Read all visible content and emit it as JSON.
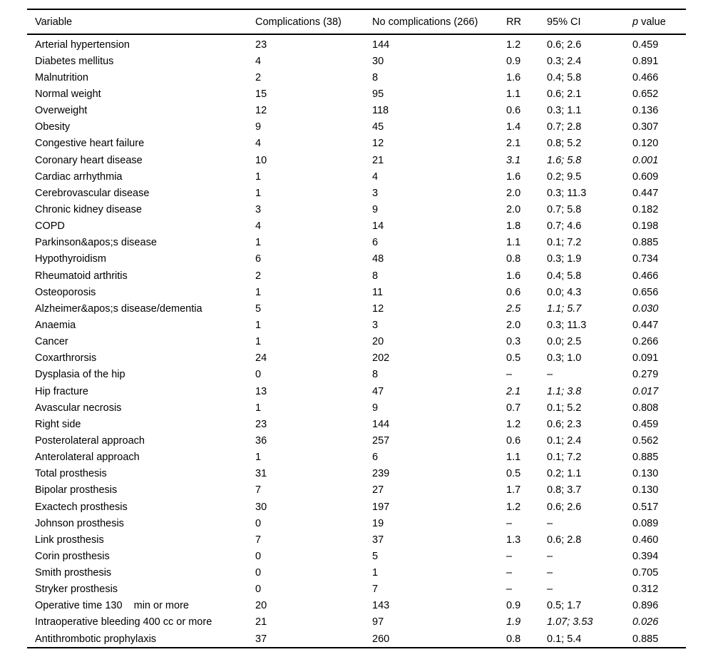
{
  "page": {
    "background_color": "#ffffff",
    "text_color": "#000000"
  },
  "table": {
    "columns": [
      {
        "key": "variable",
        "label_parts": [
          {
            "text": "Variable",
            "italic": false
          }
        ]
      },
      {
        "key": "complications",
        "label_parts": [
          {
            "text": "Complications (38)",
            "italic": false
          }
        ]
      },
      {
        "key": "no_complications",
        "label_parts": [
          {
            "text": "No complications (266)",
            "italic": false
          }
        ]
      },
      {
        "key": "rr",
        "label_parts": [
          {
            "text": "RR",
            "italic": false
          }
        ]
      },
      {
        "key": "ci",
        "label_parts": [
          {
            "text": "95% CI",
            "italic": false
          }
        ]
      },
      {
        "key": "p",
        "label_parts": [
          {
            "text": "p",
            "italic": true
          },
          {
            "text": " value",
            "italic": false
          }
        ]
      }
    ],
    "rows": [
      {
        "variable": "Arterial hypertension",
        "complications": "23",
        "no_complications": "144",
        "rr": "1.2",
        "ci": "0.6; 2.6",
        "p": "0.459",
        "significant": false
      },
      {
        "variable": "Diabetes mellitus",
        "complications": "4",
        "no_complications": "30",
        "rr": "0.9",
        "ci": "0.3; 2.4",
        "p": "0.891",
        "significant": false
      },
      {
        "variable": "Malnutrition",
        "complications": "2",
        "no_complications": "8",
        "rr": "1.6",
        "ci": "0.4; 5.8",
        "p": "0.466",
        "significant": false
      },
      {
        "variable": "Normal weight",
        "complications": "15",
        "no_complications": "95",
        "rr": "1.1",
        "ci": "0.6; 2.1",
        "p": "0.652",
        "significant": false
      },
      {
        "variable": "Overweight",
        "complications": "12",
        "no_complications": "118",
        "rr": "0.6",
        "ci": "0.3; 1.1",
        "p": "0.136",
        "significant": false
      },
      {
        "variable": "Obesity",
        "complications": "9",
        "no_complications": "45",
        "rr": "1.4",
        "ci": "0.7; 2.8",
        "p": "0.307",
        "significant": false
      },
      {
        "variable": "Congestive heart failure",
        "complications": "4",
        "no_complications": "12",
        "rr": "2.1",
        "ci": "0.8; 5.2",
        "p": "0.120",
        "significant": false
      },
      {
        "variable": "Coronary heart disease",
        "complications": "10",
        "no_complications": "21",
        "rr": "3.1",
        "ci": "1.6; 5.8",
        "p": "0.001",
        "significant": true
      },
      {
        "variable": "Cardiac arrhythmia",
        "complications": "1",
        "no_complications": "4",
        "rr": "1.6",
        "ci": "0.2; 9.5",
        "p": "0.609",
        "significant": false
      },
      {
        "variable": "Cerebrovascular disease",
        "complications": "1",
        "no_complications": "3",
        "rr": "2.0",
        "ci": "0.3; 11.3",
        "p": "0.447",
        "significant": false
      },
      {
        "variable": "Chronic kidney disease",
        "complications": "3",
        "no_complications": "9",
        "rr": "2.0",
        "ci": "0.7; 5.8",
        "p": "0.182",
        "significant": false
      },
      {
        "variable": "COPD",
        "complications": "4",
        "no_complications": "14",
        "rr": "1.8",
        "ci": "0.7; 4.6",
        "p": "0.198",
        "significant": false
      },
      {
        "variable": "Parkinson&apos;s disease",
        "complications": "1",
        "no_complications": "6",
        "rr": "1.1",
        "ci": "0.1; 7.2",
        "p": "0.885",
        "significant": false
      },
      {
        "variable": "Hypothyroidism",
        "complications": "6",
        "no_complications": "48",
        "rr": "0.8",
        "ci": "0.3; 1.9",
        "p": "0.734",
        "significant": false
      },
      {
        "variable": "Rheumatoid arthritis",
        "complications": "2",
        "no_complications": "8",
        "rr": "1.6",
        "ci": "0.4; 5.8",
        "p": "0.466",
        "significant": false
      },
      {
        "variable": "Osteoporosis",
        "complications": "1",
        "no_complications": "11",
        "rr": "0.6",
        "ci": "0.0; 4.3",
        "p": "0.656",
        "significant": false
      },
      {
        "variable": "Alzheimer&apos;s disease/dementia",
        "complications": "5",
        "no_complications": "12",
        "rr": "2.5",
        "ci": "1.1; 5.7",
        "p": "0.030",
        "significant": true
      },
      {
        "variable": "Anaemia",
        "complications": "1",
        "no_complications": "3",
        "rr": "2.0",
        "ci": "0.3; 11.3",
        "p": "0.447",
        "significant": false
      },
      {
        "variable": "Cancer",
        "complications": "1",
        "no_complications": "20",
        "rr": "0.3",
        "ci": "0.0; 2.5",
        "p": "0.266",
        "significant": false
      },
      {
        "variable": "Coxarthrorsis",
        "complications": "24",
        "no_complications": "202",
        "rr": "0.5",
        "ci": "0.3; 1.0",
        "p": "0.091",
        "significant": false
      },
      {
        "variable": "Dysplasia of the hip",
        "complications": "0",
        "no_complications": "8",
        "rr": "–",
        "ci": "–",
        "p": "0.279",
        "significant": false
      },
      {
        "variable": "Hip fracture",
        "complications": "13",
        "no_complications": "47",
        "rr": "2.1",
        "ci": "1.1; 3.8",
        "p": "0.017",
        "significant": true
      },
      {
        "variable": "Avascular necrosis",
        "complications": "1",
        "no_complications": "9",
        "rr": "0.7",
        "ci": "0.1; 5.2",
        "p": "0.808",
        "significant": false
      },
      {
        "variable": "Right side",
        "complications": "23",
        "no_complications": "144",
        "rr": "1.2",
        "ci": "0.6; 2.3",
        "p": "0.459",
        "significant": false
      },
      {
        "variable": "Posterolateral approach",
        "complications": "36",
        "no_complications": "257",
        "rr": "0.6",
        "ci": "0.1; 2.4",
        "p": "0.562",
        "significant": false
      },
      {
        "variable": "Anterolateral approach",
        "complications": "1",
        "no_complications": "6",
        "rr": "1.1",
        "ci": "0.1; 7.2",
        "p": "0.885",
        "significant": false
      },
      {
        "variable": "Total prosthesis",
        "complications": "31",
        "no_complications": "239",
        "rr": "0.5",
        "ci": "0.2; 1.1",
        "p": "0.130",
        "significant": false
      },
      {
        "variable": "Bipolar prosthesis",
        "complications": "7",
        "no_complications": "27",
        "rr": "1.7",
        "ci": "0.8; 3.7",
        "p": "0.130",
        "significant": false
      },
      {
        "variable": "Exactech prosthesis",
        "complications": "30",
        "no_complications": "197",
        "rr": "1.2",
        "ci": "0.6; 2.6",
        "p": "0.517",
        "significant": false
      },
      {
        "variable": "Johnson prosthesis",
        "complications": "0",
        "no_complications": "19",
        "rr": "–",
        "ci": "–",
        "p": "0.089",
        "significant": false
      },
      {
        "variable": "Link prosthesis",
        "complications": "7",
        "no_complications": "37",
        "rr": "1.3",
        "ci": "0.6; 2.8",
        "p": "0.460",
        "significant": false
      },
      {
        "variable": "Corin prosthesis",
        "complications": "0",
        "no_complications": "5",
        "rr": "–",
        "ci": "–",
        "p": "0.394",
        "significant": false
      },
      {
        "variable": "Smith prosthesis",
        "complications": "0",
        "no_complications": "1",
        "rr": "–",
        "ci": "–",
        "p": "0.705",
        "significant": false
      },
      {
        "variable": "Stryker prosthesis",
        "complications": "0",
        "no_complications": "7",
        "rr": "–",
        "ci": "–",
        "p": "0.312",
        "significant": false
      },
      {
        "variable": "Operative time 130    min or more",
        "complications": "20",
        "no_complications": "143",
        "rr": "0.9",
        "ci": "0.5; 1.7",
        "p": "0.896",
        "significant": false
      },
      {
        "variable": "Intraoperative bleeding 400 cc or more",
        "complications": "21",
        "no_complications": "97",
        "rr": "1.9",
        "ci": "1.07; 3.53",
        "p": "0.026",
        "significant": true
      },
      {
        "variable": "Antithrombotic prophylaxis",
        "complications": "37",
        "no_complications": "260",
        "rr": "0.8",
        "ci": "0.1; 5.4",
        "p": "0.885",
        "significant": false
      }
    ]
  }
}
